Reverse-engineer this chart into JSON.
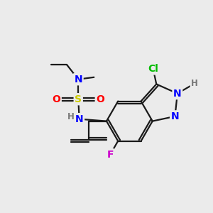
{
  "bg_color": "#ebebeb",
  "bond_color": "#1a1a1a",
  "bond_width": 1.6,
  "colors": {
    "N": "#0000ff",
    "O": "#ff0000",
    "S": "#cccc00",
    "Cl": "#00bb00",
    "F": "#cc00cc",
    "H_label": "#777777",
    "C": "#1a1a1a"
  },
  "font_size_atom": 10,
  "font_size_small": 8.5
}
